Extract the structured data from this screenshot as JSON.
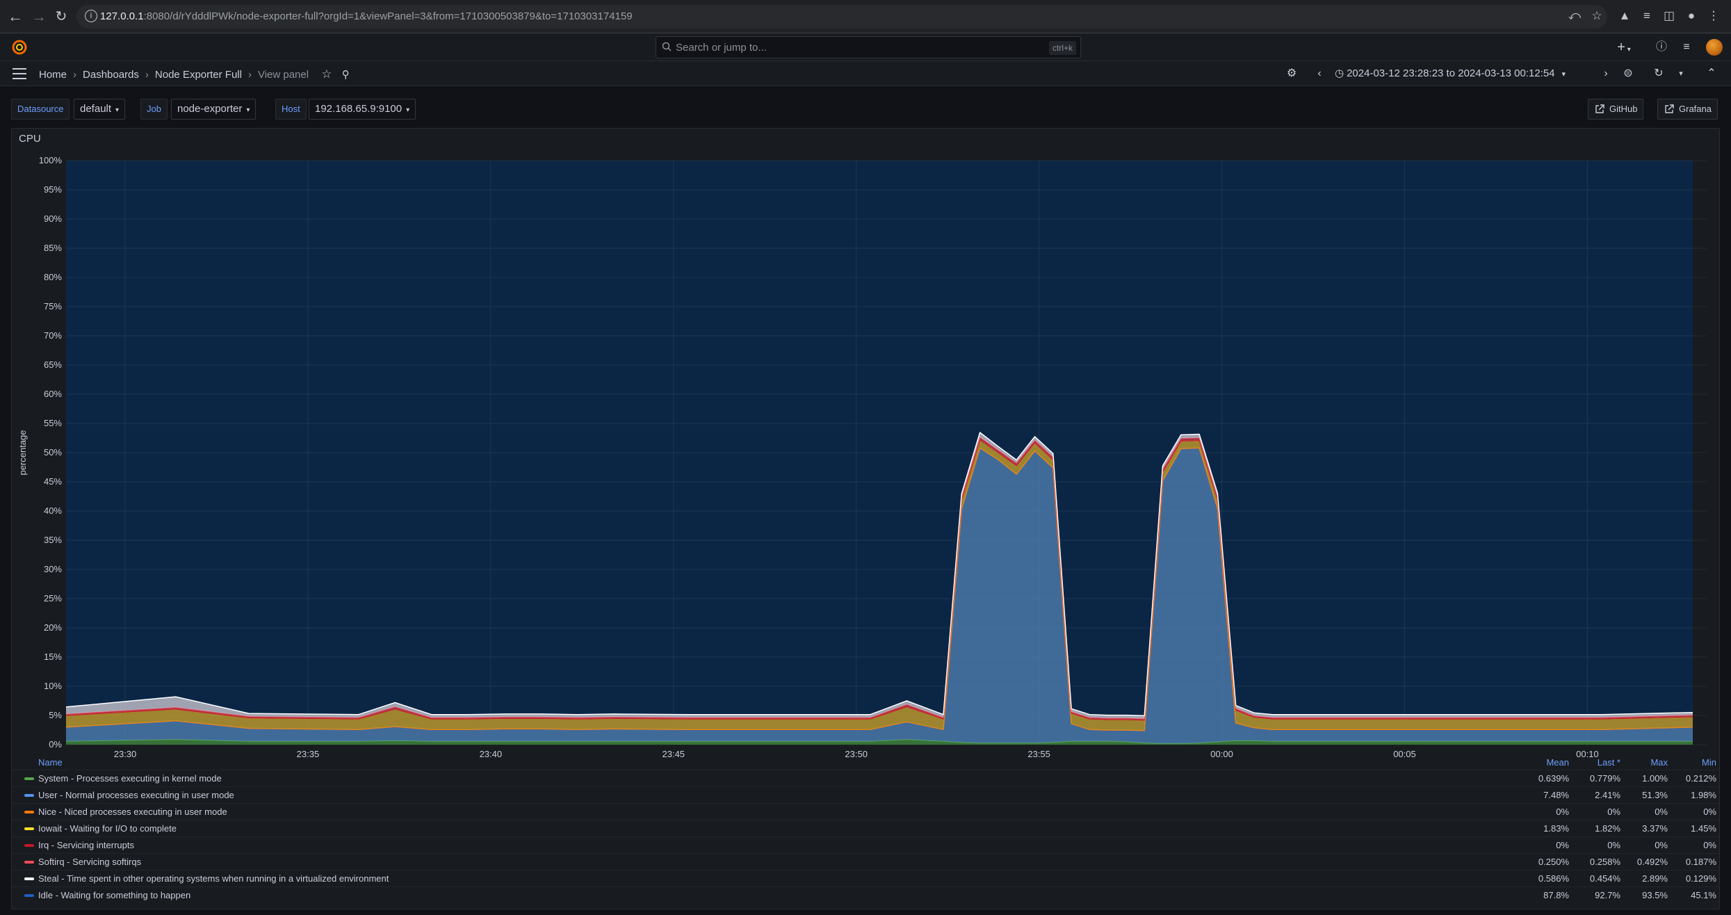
{
  "browser": {
    "url_host": "127.0.0.1",
    "url_rest": ":8080/d/rYdddlPWk/node-exporter-full?orgId=1&viewPanel=3&from=1710300503879&to=1710303174159"
  },
  "topnav": {
    "search_placeholder": "Search or jump to...",
    "search_shortcut": "ctrl+k",
    "add_label": "+"
  },
  "breadcrumb": {
    "items": [
      "Home",
      "Dashboards",
      "Node Exporter Full"
    ],
    "current": "View panel"
  },
  "time_range": "2024-03-12 23:28:23 to 2024-03-13 00:12:54",
  "variables": [
    {
      "label": "Datasource",
      "value": "default"
    },
    {
      "label": "Job",
      "value": "node-exporter"
    },
    {
      "label": "Host",
      "value": "192.168.65.9:9100"
    }
  ],
  "links": [
    "GitHub",
    "Grafana"
  ],
  "panel": {
    "title": "CPU"
  },
  "chart_data": {
    "type": "area",
    "stacked": true,
    "title": "CPU",
    "ylabel": "percentage",
    "ylim": [
      0,
      100
    ],
    "yticks": [
      "0%",
      "5%",
      "10%",
      "15%",
      "20%",
      "25%",
      "30%",
      "35%",
      "40%",
      "45%",
      "50%",
      "55%",
      "60%",
      "65%",
      "70%",
      "75%",
      "80%",
      "85%",
      "90%",
      "95%",
      "100%"
    ],
    "xticks": [
      "23:30",
      "23:35",
      "23:40",
      "23:45",
      "23:50",
      "23:55",
      "00:00",
      "00:05",
      "00:10"
    ],
    "x_minutes_from_2328": [
      0,
      3,
      5,
      8,
      9,
      10,
      11,
      12,
      13,
      14,
      15,
      17,
      19,
      21,
      22,
      23,
      24,
      24.5,
      25,
      25.5,
      26,
      26.5,
      27,
      27.5,
      28,
      28.5,
      29,
      29.5,
      30,
      30.5,
      31,
      31.5,
      32,
      32.5,
      33,
      34,
      36,
      38,
      40,
      42,
      44.5
    ],
    "x_labels_time": [
      "23:28:23",
      "23:31",
      "23:33",
      "23:36",
      "23:37",
      "23:38",
      "23:39",
      "23:40",
      "23:41",
      "23:42",
      "23:43",
      "23:45",
      "23:47",
      "23:49",
      "23:50",
      "23:51",
      "23:52",
      "23:52:30",
      "23:53",
      "23:53:30",
      "23:54",
      "23:54:30",
      "23:55",
      "23:55:30",
      "23:56",
      "23:56:30",
      "23:57",
      "23:57:30",
      "23:58",
      "23:58:30",
      "23:59",
      "23:59:30",
      "00:00",
      "00:00:30",
      "00:01",
      "00:02",
      "00:04",
      "00:06",
      "00:08",
      "00:10",
      "00:12:54"
    ],
    "series": [
      {
        "name": "System - Processes executing in kernel mode",
        "color": "#56a64b",
        "values": [
          0.6,
          0.9,
          0.6,
          0.6,
          0.7,
          0.6,
          0.6,
          0.6,
          0.6,
          0.6,
          0.6,
          0.6,
          0.6,
          0.6,
          0.6,
          0.9,
          0.6,
          0.4,
          0.3,
          0.3,
          0.3,
          0.3,
          0.4,
          0.6,
          0.6,
          0.6,
          0.5,
          0.3,
          0.2,
          0.2,
          0.3,
          0.5,
          0.7,
          0.7,
          0.6,
          0.6,
          0.6,
          0.6,
          0.6,
          0.6,
          0.6
        ]
      },
      {
        "name": "User - Normal processes executing in user mode",
        "color": "#5794f2",
        "values": [
          2.4,
          3.2,
          2.2,
          2.0,
          2.4,
          2.0,
          2.0,
          2.1,
          2.1,
          2.0,
          2.1,
          2.0,
          2.0,
          2.0,
          2.0,
          3.0,
          2.0,
          40.0,
          50.5,
          48.5,
          46.0,
          50.0,
          47.0,
          3.0,
          2.0,
          1.9,
          2.0,
          2.1,
          45.0,
          50.5,
          50.5,
          40.0,
          3.0,
          2.2,
          2.0,
          2.0,
          2.0,
          2.0,
          2.0,
          2.0,
          2.4
        ]
      },
      {
        "name": "Nice - Niced processes executing in user mode",
        "color": "#ff780a",
        "values": [
          0,
          0,
          0,
          0,
          0,
          0,
          0,
          0,
          0,
          0,
          0,
          0,
          0,
          0,
          0,
          0,
          0,
          0,
          0,
          0,
          0,
          0,
          0,
          0,
          0,
          0,
          0,
          0,
          0,
          0,
          0,
          0,
          0,
          0,
          0,
          0,
          0,
          0,
          0,
          0,
          0
        ]
      },
      {
        "name": "Iowait - Waiting for I/O to complete",
        "color": "#fade2a",
        "values": [
          2.0,
          2.0,
          1.8,
          1.8,
          3.0,
          1.8,
          1.8,
          1.8,
          1.8,
          1.8,
          1.8,
          1.8,
          1.8,
          1.8,
          1.8,
          2.6,
          1.8,
          1.6,
          1.4,
          1.2,
          1.5,
          1.4,
          1.4,
          1.8,
          1.8,
          1.8,
          1.8,
          1.8,
          1.5,
          1.3,
          1.3,
          1.5,
          2.2,
          1.8,
          1.8,
          1.8,
          1.8,
          1.8,
          1.8,
          1.8,
          1.8
        ]
      },
      {
        "name": "Irq - Servicing interrupts",
        "color": "#c4162a",
        "values": [
          0,
          0,
          0,
          0,
          0,
          0,
          0,
          0,
          0,
          0,
          0,
          0,
          0,
          0,
          0,
          0,
          0,
          0,
          0,
          0,
          0,
          0,
          0,
          0,
          0,
          0,
          0,
          0,
          0,
          0,
          0,
          0,
          0,
          0,
          0,
          0,
          0,
          0,
          0,
          0,
          0
        ]
      },
      {
        "name": "Softirq - Servicing softirqs",
        "color": "#f2495c",
        "values": [
          0.25,
          0.3,
          0.25,
          0.25,
          0.4,
          0.25,
          0.25,
          0.25,
          0.25,
          0.25,
          0.25,
          0.25,
          0.25,
          0.25,
          0.25,
          0.4,
          0.25,
          0.4,
          0.45,
          0.45,
          0.45,
          0.45,
          0.45,
          0.25,
          0.25,
          0.25,
          0.25,
          0.25,
          0.45,
          0.45,
          0.45,
          0.45,
          0.3,
          0.25,
          0.25,
          0.25,
          0.25,
          0.25,
          0.25,
          0.25,
          0.26
        ]
      },
      {
        "name": "Steal - Time spent in other operating systems when running in a virtualized environment",
        "color": "#ffffff",
        "values": [
          1.2,
          1.8,
          0.5,
          0.5,
          0.7,
          0.5,
          0.5,
          0.5,
          0.5,
          0.5,
          0.5,
          0.5,
          0.5,
          0.5,
          0.5,
          0.6,
          0.5,
          0.6,
          0.8,
          0.6,
          0.5,
          0.6,
          0.6,
          0.5,
          0.5,
          0.5,
          0.5,
          0.5,
          0.6,
          0.6,
          0.6,
          0.6,
          0.5,
          0.5,
          0.5,
          0.5,
          0.5,
          0.5,
          0.5,
          0.5,
          0.45
        ]
      },
      {
        "name": "Idle - Waiting for something to happen",
        "color": "#0a2a4a",
        "values": [
          93.55,
          91.8,
          94.65,
          94.85,
          92.8,
          94.85,
          94.85,
          94.75,
          94.75,
          94.85,
          94.75,
          94.85,
          94.85,
          94.85,
          94.85,
          92.5,
          94.85,
          57.0,
          46.55,
          48.95,
          51.25,
          47.25,
          50.15,
          93.85,
          94.85,
          94.95,
          94.95,
          95.05,
          51.75,
          46.95,
          46.85,
          56.95,
          93.3,
          94.55,
          94.85,
          94.85,
          94.85,
          94.85,
          94.85,
          94.85,
          94.49
        ]
      }
    ],
    "legend_placement": "bottom",
    "grid": true
  },
  "legend": {
    "headers": {
      "name": "Name",
      "mean": "Mean",
      "last": "Last *",
      "max": "Max",
      "min": "Min"
    },
    "rows": [
      {
        "name": "System - Processes executing in kernel mode",
        "color": "#56a64b",
        "mean": "0.639%",
        "last": "0.779%",
        "max": "1.00%",
        "min": "0.212%"
      },
      {
        "name": "User - Normal processes executing in user mode",
        "color": "#5794f2",
        "mean": "7.48%",
        "last": "2.41%",
        "max": "51.3%",
        "min": "1.98%"
      },
      {
        "name": "Nice - Niced processes executing in user mode",
        "color": "#ff780a",
        "mean": "0%",
        "last": "0%",
        "max": "0%",
        "min": "0%"
      },
      {
        "name": "Iowait - Waiting for I/O to complete",
        "color": "#fade2a",
        "mean": "1.83%",
        "last": "1.82%",
        "max": "3.37%",
        "min": "1.45%"
      },
      {
        "name": "Irq - Servicing interrupts",
        "color": "#c4162a",
        "mean": "0%",
        "last": "0%",
        "max": "0%",
        "min": "0%"
      },
      {
        "name": "Softirq - Servicing softirqs",
        "color": "#f2495c",
        "mean": "0.250%",
        "last": "0.258%",
        "max": "0.492%",
        "min": "0.187%"
      },
      {
        "name": "Steal - Time spent in other operating systems when running in a virtualized environment",
        "color": "#ffffff",
        "mean": "0.586%",
        "last": "0.454%",
        "max": "2.89%",
        "min": "0.129%"
      },
      {
        "name": "Idle - Waiting for something to happen",
        "color": "#0a2a4a",
        "mean": "87.8%",
        "last": "92.7%",
        "max": "93.5%",
        "min": "45.1%"
      }
    ]
  }
}
